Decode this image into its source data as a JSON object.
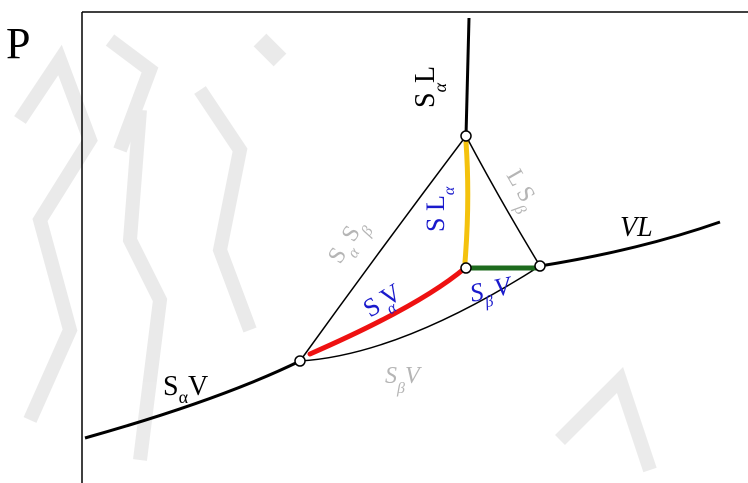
{
  "axis": {
    "label": "P"
  },
  "colors": {
    "black": "#000000",
    "gray": "#b5b5b5",
    "blue": "#1a1acc",
    "red": "#ee1111",
    "yellow": "#f4c20d",
    "green": "#1e6b1e",
    "background_texture": "#e6e6e6"
  },
  "curves": {
    "sa_l": {
      "main": "S",
      "sub": "α",
      "tail": "L"
    },
    "l_sb": {
      "main": "L S",
      "sub": "β"
    },
    "sa_sb": {
      "main": "S",
      "sub": "α",
      "mid": "S",
      "sub2": "β"
    },
    "vl": {
      "text": "VL"
    },
    "sa_v_left": {
      "main": "S",
      "sub": "α",
      "tail": "V"
    },
    "sb_v_lower": {
      "main": "S",
      "sub": "β",
      "tail": "V"
    },
    "sl_alpha_blue": {
      "main": "S L",
      "sub": "α"
    },
    "sv_alpha_blue": {
      "main": "S V",
      "sub": "α"
    },
    "sv_beta_blue": {
      "main": "S",
      "sub": "β",
      "tail": "V"
    }
  }
}
